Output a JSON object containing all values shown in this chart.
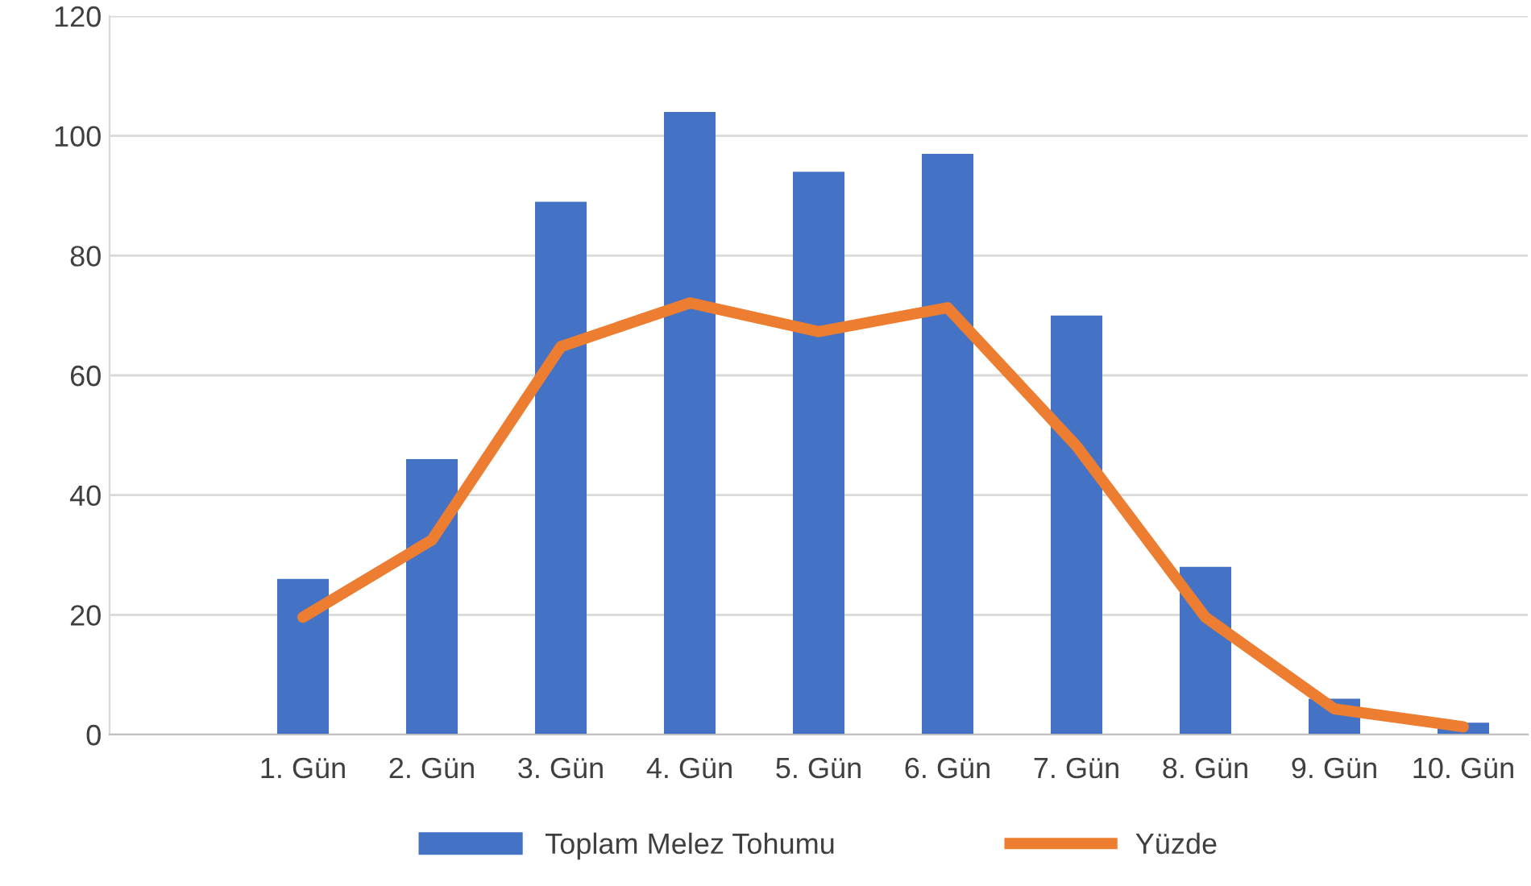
{
  "chart_data": {
    "type": "bar",
    "categories": [
      null,
      "1. Gün",
      "2. Gün",
      "3. Gün",
      "4. Gün",
      "5. Gün",
      "6. Gün",
      "7. Gün",
      "8. Gün",
      "9. Gün",
      "10. Gün"
    ],
    "series": [
      {
        "name": "Toplam Melez Tohumu",
        "color": "#4472c4",
        "values": [
          null,
          26,
          46,
          89,
          104,
          94,
          97,
          70,
          28,
          6,
          2
        ]
      },
      {
        "name": "Yüzde",
        "type": "line",
        "color": "#ed7d31",
        "values": [
          null,
          19.6,
          32.5,
          64.8,
          72.1,
          67.3,
          71.3,
          48.2,
          19.6,
          4.3,
          1.3
        ]
      }
    ],
    "ylim": [
      0,
      120
    ],
    "yticks": [
      0,
      20,
      40,
      60,
      80,
      100,
      120
    ],
    "grid": "y",
    "legend": "bottom"
  }
}
